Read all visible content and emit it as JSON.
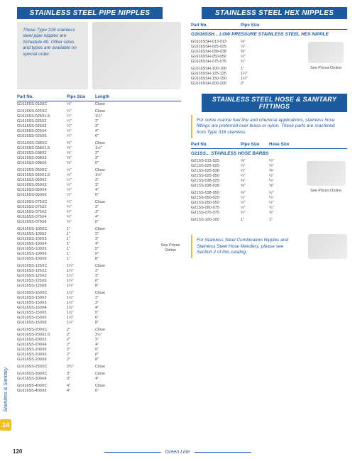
{
  "page_number": "120",
  "footer": "Green Line",
  "side_label": "Stainless & Sanitary",
  "tab": "14",
  "headers": {
    "h1": "STAINLESS STEEL PIPE NIPPLES",
    "h2": "STAINLESS STEEL HEX NIPPLES",
    "h3": "STAINLESS STEEL HOSE & SANITARY FITTINGS"
  },
  "note1": "These Type 316 stainless steel pipe nipples are Schedule 40. Other sizes and types are available on special order.",
  "note2": "For some marine fuel line and chemical applications, stainless hose fittings are preferred over brass or nylon. These parts are machined from Type 316 stainless.",
  "note3": "For Stainless Steel Combination Nipples and Stainless Steel Hose Menders, please see Section 2 of this catalog.",
  "prices": "See Prices Online",
  "cols": {
    "part": "Part No.",
    "pipe": "Pipe Size",
    "hose": "Hose Size",
    "len": "Length"
  },
  "sub1": "G1616SSH... LOW PRESSURE STAINLESS STEEL HEX NIPPLE",
  "sub2": "G21SS... STAINLESS HOSE BARBS",
  "nipples": [
    [
      [
        "G1616SS-013XC",
        "⅛\"",
        "Close"
      ]
    ],
    [
      [
        "G1616SS-025XC",
        "¼\"",
        "Close"
      ],
      [
        "G1616SS-025X1.5",
        "¼\"",
        "1½\""
      ],
      [
        "G1616SS-025X2",
        "¼\"",
        "2\""
      ],
      [
        "G1616SS-025X3",
        "¼\"",
        "3\""
      ],
      [
        "G1616SS-025X4",
        "¼\"",
        "4\""
      ],
      [
        "G1616SS-025X6",
        "¼\"",
        "6\""
      ]
    ],
    [
      [
        "G1616SS-038XC",
        "⅜\"",
        "Close"
      ],
      [
        "G1616SS-038X1.5",
        "⅜\"",
        "1½\""
      ],
      [
        "G1616SS-038X2",
        "⅜\"",
        "2\""
      ],
      [
        "G1616SS-038X3",
        "⅜\"",
        "3\""
      ],
      [
        "G1616SS-038X6",
        "⅜\"",
        "6\""
      ]
    ],
    [
      [
        "G1616SS-050XC",
        "½\"",
        "Close"
      ],
      [
        "G1616SS-050X1.5",
        "½\"",
        "1½\""
      ],
      [
        "G1616SS-050X2",
        "½\"",
        "2\""
      ],
      [
        "G1616SS-050X3",
        "½\"",
        "3\""
      ],
      [
        "G1616SS-050X4",
        "½\"",
        "4\""
      ],
      [
        "G1616SS-050X6",
        "½\"",
        "6\""
      ]
    ],
    [
      [
        "G1616SS-075XC",
        "¾\"",
        "Close"
      ],
      [
        "G1616SS-075X2",
        "¾\"",
        "2\""
      ],
      [
        "G1616SS-075X3",
        "¾\"",
        "3\""
      ],
      [
        "G1616SS-075X4",
        "¾\"",
        "4\""
      ],
      [
        "G1616SS-075X6",
        "¾\"",
        "6\""
      ]
    ],
    [
      [
        "G1616SS-100XC",
        "1\"",
        "Close"
      ],
      [
        "G1616SS-100X2",
        "1\"",
        "2\""
      ],
      [
        "G1616SS-100X3",
        "1\"",
        "3\""
      ],
      [
        "G1616SS-100X4",
        "1\"",
        "4\""
      ],
      [
        "G1616SS-100X5",
        "1\"",
        "5\""
      ],
      [
        "G1616SS-100X6",
        "1\"",
        "6\""
      ],
      [
        "G1616SS-100X8",
        "1\"",
        "8\""
      ]
    ],
    [
      [
        "G1616SS-125XC",
        "1¼\"",
        "Close"
      ],
      [
        "G1616SS-125X2",
        "1¼\"",
        "2\""
      ],
      [
        "G1616SS-125X3",
        "1¼\"",
        "3\""
      ],
      [
        "G1616SS-125X6",
        "1¼\"",
        "6\""
      ],
      [
        "G1616SS-125X8",
        "1¼\"",
        "8\""
      ]
    ],
    [
      [
        "G1616SS-150XC",
        "1½\"",
        "Close"
      ],
      [
        "G1616SS-150X2",
        "1½\"",
        "2\""
      ],
      [
        "G1616SS-150X3",
        "1½\"",
        "3\""
      ],
      [
        "G1616SS-150X4",
        "1½\"",
        "4\""
      ],
      [
        "G1616SS-150X5",
        "1½\"",
        "5\""
      ],
      [
        "G1616SS-150X6",
        "1½\"",
        "6\""
      ],
      [
        "G1616SS-150X8",
        "1½\"",
        "8\""
      ]
    ],
    [
      [
        "G1616SS-200XC",
        "2\"",
        "Close"
      ],
      [
        "G1616SS-200X2.5",
        "2\"",
        "2½\""
      ],
      [
        "G1616SS-200X3",
        "2\"",
        "3\""
      ],
      [
        "G1616SS-200X4",
        "2\"",
        "4\""
      ],
      [
        "G1616SS-200X5",
        "2\"",
        "5\""
      ],
      [
        "G1616SS-200X6",
        "2\"",
        "6\""
      ],
      [
        "G1616SS-200X8",
        "2\"",
        "8\""
      ]
    ],
    [
      [
        "G1616SS-250XC",
        "2½\"",
        "Close"
      ]
    ],
    [
      [
        "G1616SS-300XC",
        "3\"",
        "Close"
      ],
      [
        "G1616SS-300X4",
        "3\"",
        "4\""
      ]
    ],
    [
      [
        "G1616SS-400XC",
        "4\"",
        "Close"
      ],
      [
        "G1616SS-400X6",
        "4\"",
        "6\""
      ]
    ]
  ],
  "hex": [
    [
      [
        "G1616SSH-013-013",
        "⅛\""
      ],
      [
        "G1616SSH-025-025",
        "¼\""
      ],
      [
        "G1616SSH-038-038",
        "⅜\""
      ],
      [
        "G1616SSH-050-050",
        "½\""
      ],
      [
        "G1616SSH-075-075",
        "¾\""
      ]
    ],
    [
      [
        "G1616SSH-100-100",
        "1\""
      ],
      [
        "G1616SSH-125-125",
        "1¼\""
      ],
      [
        "G1616SSH-150-150",
        "1½\""
      ],
      [
        "G1616SSH-200-200",
        "2\""
      ]
    ]
  ],
  "barbs": [
    [
      [
        "G21SS-013-025",
        "⅛\"",
        "¼\""
      ],
      [
        "G21SS-025-025",
        "¼\"",
        "¼\""
      ],
      [
        "G21SS-025-038",
        "¼\"",
        "⅜\""
      ],
      [
        "G21SS-025-050",
        "¼\"",
        "½\""
      ],
      [
        "G21SS-038-025",
        "⅜\"",
        "¼\""
      ],
      [
        "G21SS-038-038",
        "⅜\"",
        "⅜\""
      ]
    ],
    [
      [
        "G21SS-038-050",
        "⅜\"",
        "½\""
      ],
      [
        "G21SS-050-025",
        "½\"",
        "¼\""
      ],
      [
        "G21SS-050-050",
        "½\"",
        "½\""
      ],
      [
        "G21SS-050-075",
        "½\"",
        "¾\""
      ],
      [
        "G21SS-075-075",
        "¾\"",
        "¾\""
      ]
    ],
    [
      [
        "G21SS-100-100",
        "1\"",
        "1\""
      ]
    ]
  ]
}
